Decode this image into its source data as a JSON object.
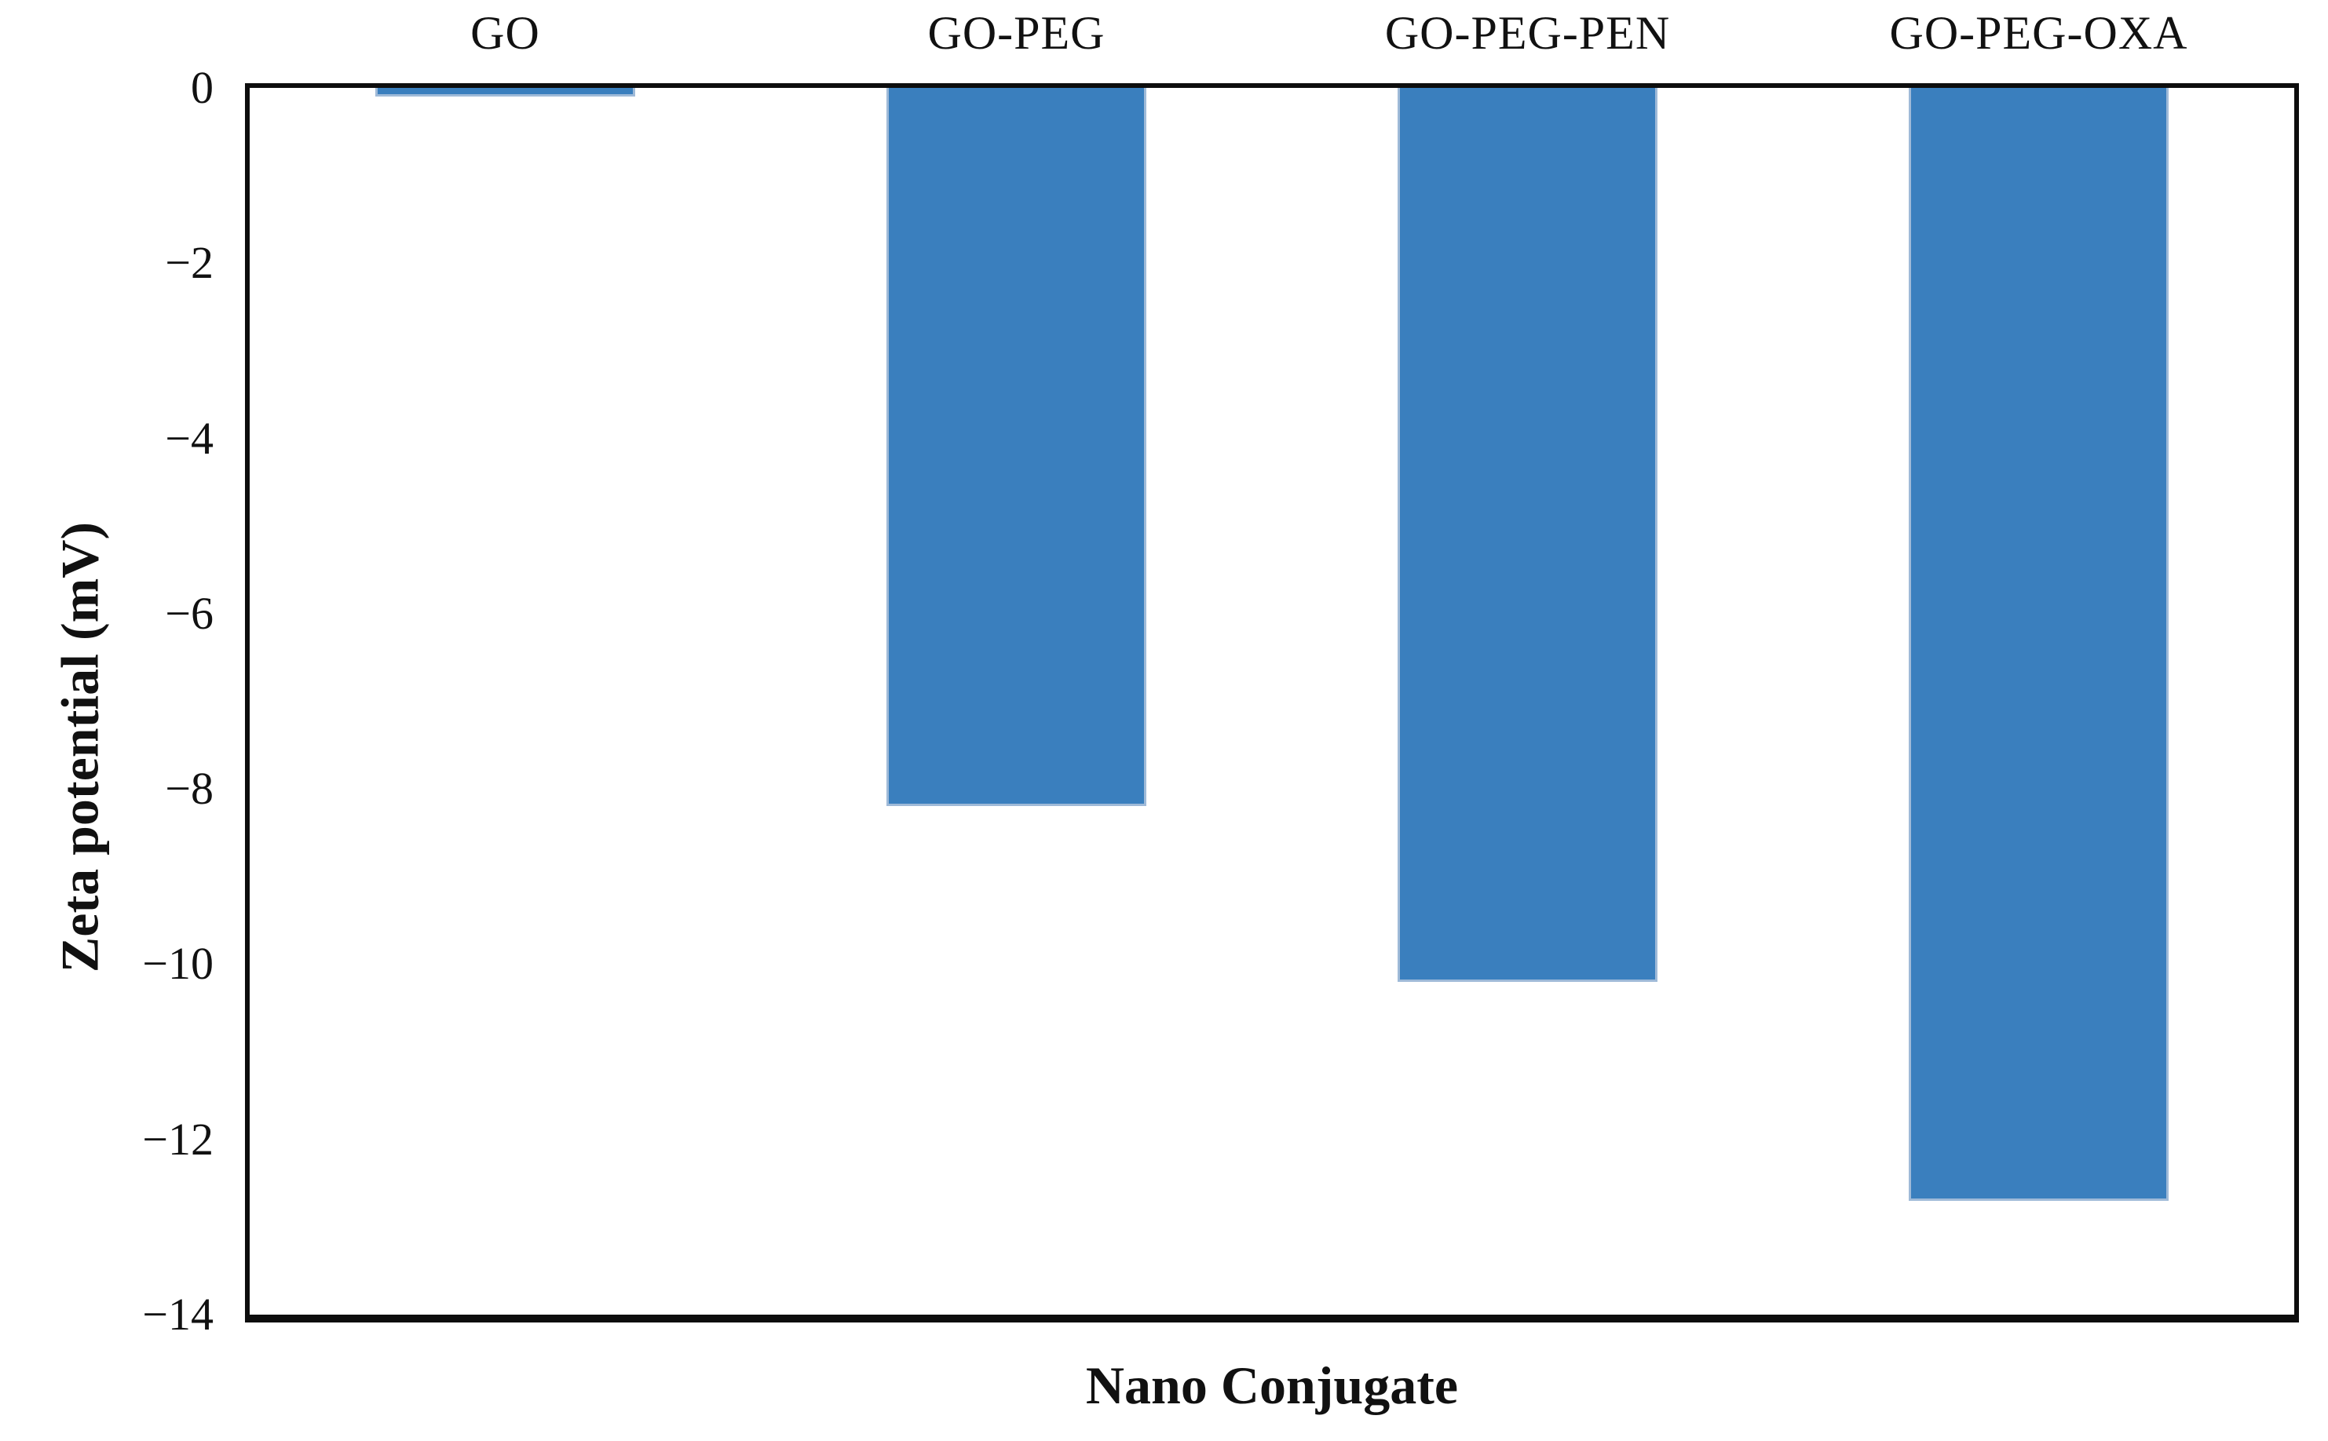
{
  "chart_data": {
    "type": "bar",
    "title": "",
    "categories": [
      "GO",
      "GO-PEG",
      "GO-PEG-PEN",
      "GO-PEG-OXA"
    ],
    "values": [
      -0.1,
      -8.2,
      -10.2,
      -12.7
    ],
    "xlabel": "Nano Conjugate",
    "ylabel": "Zeta potential (mV)",
    "ylim": [
      -14,
      0
    ],
    "yticks": [
      0,
      -2,
      -4,
      -6,
      -8,
      -10,
      -12,
      -14
    ],
    "ytick_labels": [
      "0",
      "−2",
      "−4",
      "−6",
      "−8",
      "−10",
      "−12",
      "−14"
    ],
    "grid": "off",
    "legend": "none",
    "bar_color": "#3A7FBE",
    "bar_border_color": "#9FBAD8",
    "axis_color": "#0D0D0D",
    "orientation": "vertical-negative",
    "category_labels_position": "above-plot"
  }
}
